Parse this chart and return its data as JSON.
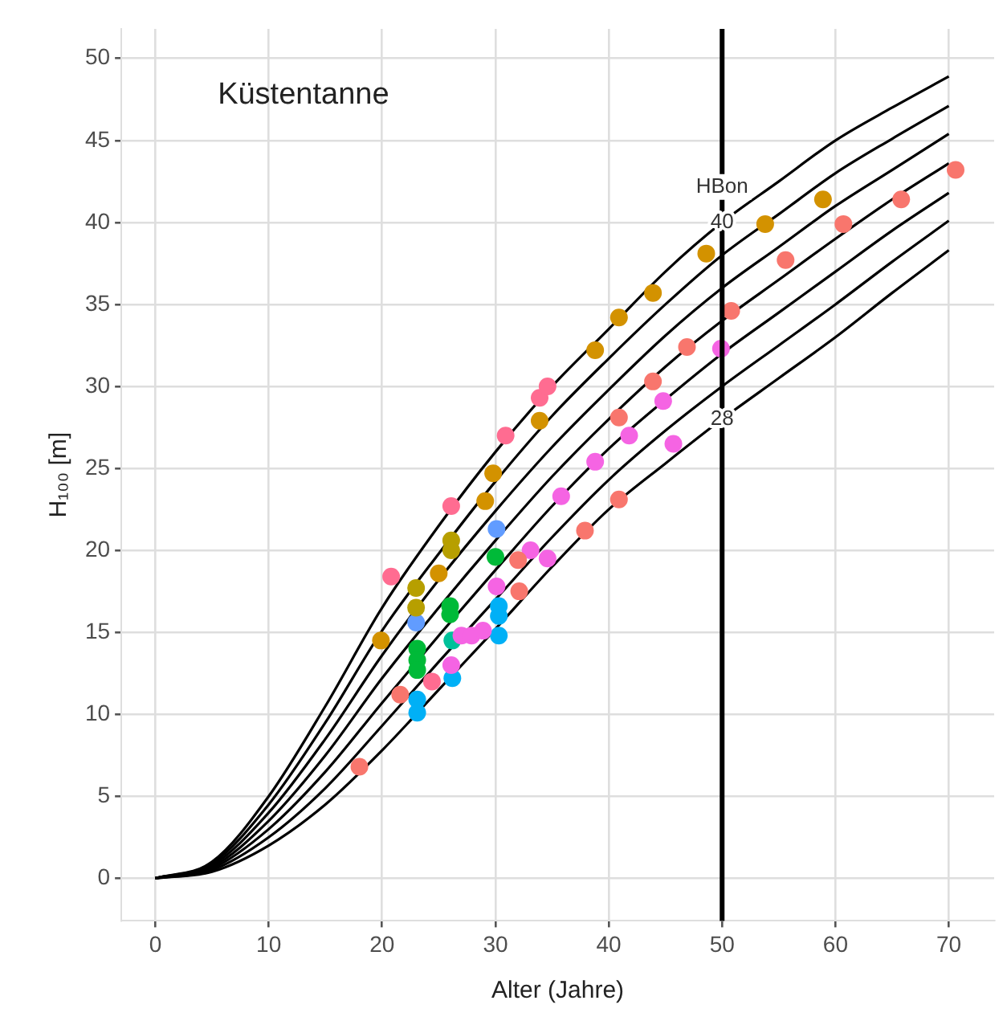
{
  "chart_data": {
    "type": "line",
    "title": "Küstentanne",
    "xlabel": "Alter (Jahre)",
    "ylabel": "H₁₀₀ [m]",
    "xlim": [
      -3,
      74
    ],
    "ylim": [
      -2.6,
      51.8
    ],
    "xticks": [
      0,
      10,
      20,
      30,
      40,
      50,
      60,
      70
    ],
    "yticks": [
      0,
      5,
      10,
      15,
      20,
      25,
      30,
      35,
      40,
      45,
      50
    ],
    "grid": true,
    "ref_lines": [
      {
        "axis": "x",
        "value": 50,
        "label": "HBon",
        "color": "#000000"
      }
    ],
    "series": [
      {
        "type": "line",
        "name": "28",
        "color": "#000000",
        "marker": "none",
        "x": [
          0,
          5,
          10,
          15,
          20,
          25,
          30,
          35,
          40,
          45,
          50,
          55,
          60,
          65,
          70
        ],
        "values": [
          0,
          0.4,
          2,
          4.5,
          7.8,
          11.5,
          15.2,
          19,
          22.5,
          25.3,
          28,
          30.5,
          33,
          35.7,
          38.3
        ]
      },
      {
        "type": "line",
        "color": "#000000",
        "marker": "none",
        "x": [
          0,
          5,
          10,
          15,
          20,
          25,
          30,
          35,
          40,
          45,
          50,
          55,
          60,
          65,
          70
        ],
        "values": [
          0,
          0.5,
          2.5,
          5.5,
          9.3,
          13.2,
          17,
          20.8,
          24.3,
          27.3,
          30,
          32.5,
          35,
          37.6,
          40.1
        ]
      },
      {
        "type": "line",
        "color": "#000000",
        "marker": "none",
        "x": [
          0,
          5,
          10,
          15,
          20,
          25,
          30,
          35,
          40,
          45,
          50,
          55,
          60,
          65,
          70
        ],
        "values": [
          0,
          0.6,
          3,
          6.5,
          10.7,
          14.8,
          18.8,
          22.7,
          26.2,
          29.2,
          32,
          34.5,
          37,
          39.5,
          41.8
        ]
      },
      {
        "type": "line",
        "color": "#000000",
        "marker": "none",
        "x": [
          0,
          5,
          10,
          15,
          20,
          25,
          30,
          35,
          40,
          45,
          50,
          55,
          60,
          65,
          70
        ],
        "values": [
          0,
          0.7,
          3.5,
          7.5,
          12.2,
          16.5,
          20.6,
          24.5,
          28,
          31.2,
          34,
          36.5,
          39,
          41.4,
          43.6
        ]
      },
      {
        "type": "line",
        "color": "#000000",
        "marker": "none",
        "x": [
          0,
          5,
          10,
          15,
          20,
          25,
          30,
          35,
          40,
          45,
          50,
          55,
          60,
          65,
          70
        ],
        "values": [
          0,
          0.8,
          4,
          8.5,
          13.6,
          18.2,
          22.4,
          26.3,
          29.8,
          33.1,
          36,
          38.5,
          41,
          43.2,
          45.4
        ]
      },
      {
        "type": "line",
        "color": "#000000",
        "marker": "none",
        "x": [
          0,
          5,
          10,
          15,
          20,
          25,
          30,
          35,
          40,
          45,
          50,
          55,
          60,
          65,
          70
        ],
        "values": [
          0,
          0.9,
          4.5,
          9.5,
          15.1,
          19.8,
          24.2,
          28.2,
          31.7,
          35,
          38,
          40.5,
          43,
          45.1,
          47.1
        ]
      },
      {
        "type": "line",
        "name": "40",
        "color": "#000000",
        "marker": "none",
        "x": [
          0,
          5,
          10,
          15,
          20,
          25,
          30,
          35,
          40,
          45,
          50,
          55,
          60,
          65,
          70
        ],
        "values": [
          0,
          1,
          5,
          10.5,
          16.5,
          21.5,
          26,
          30,
          33.5,
          37,
          40,
          42.5,
          45,
          47,
          48.9
        ]
      },
      {
        "type": "scatter",
        "color": "#d39200",
        "marker": "circle",
        "x": [
          19.9,
          25,
          29.1,
          29.8,
          33.9,
          38.8,
          40.9,
          43.9,
          48.6,
          53.8,
          58.9
        ],
        "values": [
          14.5,
          18.6,
          23.0,
          24.7,
          27.9,
          32.2,
          34.2,
          35.7,
          38.1,
          39.9,
          41.4
        ]
      },
      {
        "type": "scatter",
        "color": "#b79f00",
        "marker": "circle",
        "x": [
          26.1,
          26.1,
          23,
          23
        ],
        "values": [
          20.6,
          20.0,
          17.7,
          16.5
        ]
      },
      {
        "type": "scatter",
        "color": "#ff6c91",
        "marker": "circle",
        "x": [
          20.8,
          26.1,
          30.9,
          33.9,
          34.6,
          24.4
        ],
        "values": [
          18.4,
          22.7,
          27.0,
          29.3,
          30.0,
          12.0
        ]
      },
      {
        "type": "scatter",
        "color": "#f8766d",
        "marker": "circle",
        "x": [
          18,
          21.6,
          32.1,
          32,
          37.9,
          40.9,
          40.9,
          43.9,
          46.9,
          50.8,
          55.6,
          60.7,
          65.8,
          70.6
        ],
        "values": [
          6.8,
          11.2,
          17.5,
          19.4,
          21.2,
          23.1,
          28.1,
          30.3,
          32.4,
          34.6,
          37.7,
          39.9,
          41.4,
          43.2
        ]
      },
      {
        "type": "scatter",
        "color": "#f564e3",
        "marker": "circle",
        "x": [
          26.1,
          27,
          27.9,
          28.9,
          30.1,
          33.1,
          34.6,
          35.8,
          38.8,
          41.8,
          44.8,
          45.7,
          49.9
        ],
        "values": [
          13.0,
          14.8,
          14.8,
          15.1,
          17.8,
          20.0,
          19.5,
          23.3,
          25.4,
          27.0,
          29.1,
          26.5,
          32.3
        ]
      },
      {
        "type": "scatter",
        "color": "#00ba38",
        "marker": "circle",
        "x": [
          23.1,
          23.1,
          23.1,
          26,
          26,
          30
        ],
        "values": [
          14.0,
          13.3,
          12.7,
          16.6,
          16.1,
          19.6
        ]
      },
      {
        "type": "scatter",
        "color": "#00b0f6",
        "marker": "circle",
        "x": [
          23.1,
          23.1,
          26.2,
          30.3,
          30.3,
          30.3
        ],
        "values": [
          10.9,
          10.1,
          12.2,
          16.6,
          16.0,
          14.8
        ]
      },
      {
        "type": "scatter",
        "color": "#619cff",
        "marker": "circle",
        "x": [
          30.1,
          23
        ],
        "values": [
          21.3,
          15.6
        ]
      },
      {
        "type": "scatter",
        "color": "#00c19a",
        "marker": "circle",
        "x": [
          26.2
        ],
        "values": [
          14.5
        ]
      }
    ]
  }
}
